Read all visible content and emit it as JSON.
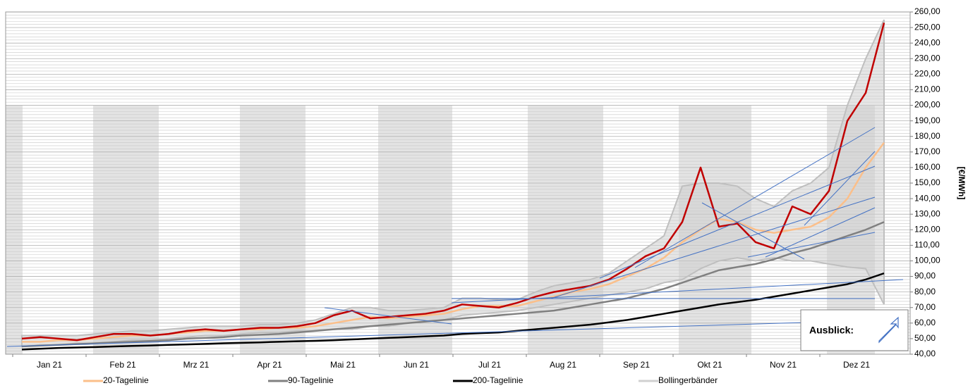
{
  "chart_data": {
    "type": "line",
    "y_axis_label": "[€/MWh]",
    "annotation": "Ausblick:",
    "categories": [
      null,
      "Jan 21",
      null,
      null,
      null,
      "Feb 21",
      null,
      null,
      null,
      "Mrz 21",
      null,
      null,
      null,
      "Apr 21",
      null,
      null,
      null,
      "Mai 21",
      null,
      null,
      null,
      "Jun 21",
      null,
      null,
      null,
      "Jul 21",
      null,
      null,
      null,
      "Aug 21",
      null,
      null,
      null,
      "Sep 21",
      null,
      null,
      null,
      "Okt 21",
      null,
      null,
      null,
      "Nov 21",
      null,
      null,
      null,
      "Dez 21",
      null,
      null
    ],
    "series": [
      {
        "name": "Bollingerbänder",
        "color": "#d0d0d0",
        "band": true,
        "values": [
          52,
          52,
          52,
          52,
          53,
          54,
          55,
          55,
          56,
          57,
          58,
          58,
          58,
          59,
          59,
          60,
          62,
          66,
          70,
          70,
          68,
          68,
          69,
          70,
          76,
          76,
          75,
          75,
          80,
          84,
          86,
          88,
          92,
          100,
          108,
          116,
          148,
          150,
          150,
          148,
          140,
          135,
          145,
          150,
          160,
          200,
          230,
          255
        ],
        "lower": [
          45,
          46,
          46,
          47,
          47,
          48,
          49,
          49,
          50,
          51,
          52,
          52,
          53,
          54,
          54,
          55,
          55,
          56,
          56,
          58,
          58,
          60,
          61,
          62,
          65,
          66,
          67,
          68,
          70,
          72,
          74,
          76,
          78,
          80,
          82,
          86,
          88,
          95,
          100,
          102,
          100,
          102,
          100,
          100,
          98,
          96,
          95,
          72
        ]
      },
      {
        "name": "200-Tagelinie",
        "color": "#000000",
        "values": [
          43,
          43.5,
          44,
          44.3,
          44.6,
          45,
          45.3,
          45.6,
          46,
          46.3,
          46.6,
          47,
          47.3,
          47.6,
          48,
          48.3,
          48.6,
          49,
          49.5,
          50,
          50.5,
          51,
          51.5,
          52,
          53,
          53.5,
          54,
          55,
          56,
          57,
          58,
          59,
          60.5,
          62,
          64,
          66,
          68,
          70,
          72,
          73.5,
          75,
          77,
          79,
          81,
          83,
          85,
          88,
          92
        ]
      },
      {
        "name": "90-Tagelinie",
        "color": "#808080",
        "values": [
          45,
          45.5,
          46,
          46.5,
          47,
          47.5,
          48,
          48.5,
          49,
          50,
          50.5,
          51,
          52,
          52.5,
          53,
          54,
          55,
          56,
          57,
          58,
          59,
          60,
          61,
          62,
          63,
          64,
          65,
          66,
          67,
          68,
          70,
          72,
          74,
          76,
          79,
          82,
          86,
          90,
          94,
          96,
          98,
          101,
          105,
          108,
          112,
          116,
          120,
          125
        ]
      },
      {
        "name": "20-Tagelinie",
        "color": "#fbbf8a",
        "values": [
          48,
          48,
          49,
          49,
          50,
          51,
          52,
          52,
          53,
          54,
          55,
          55,
          56,
          56,
          57,
          57,
          58,
          60,
          62,
          64,
          63,
          64,
          65,
          66,
          69,
          71,
          71,
          71,
          74,
          77,
          80,
          82,
          85,
          90,
          95,
          102,
          112,
          120,
          127,
          125,
          120,
          118,
          120,
          122,
          128,
          140,
          160,
          176
        ]
      },
      {
        "name": null,
        "color": "#c00000",
        "values": [
          50,
          51,
          50,
          49,
          51,
          53,
          53,
          52,
          53,
          55,
          56,
          55,
          56,
          57,
          57,
          58,
          60,
          65,
          68,
          63,
          64,
          65,
          66,
          68,
          72,
          71,
          70,
          73,
          77,
          80,
          82,
          84,
          88,
          95,
          103,
          108,
          125,
          160,
          122,
          124,
          112,
          108,
          135,
          130,
          145,
          190,
          208,
          253
        ]
      }
    ],
    "legend_order": [
      3,
      2,
      1,
      0
    ],
    "ylim": [
      40,
      260
    ],
    "yticks": [
      {
        "value": 40,
        "label": "40,00"
      },
      {
        "value": 50,
        "label": "50,00"
      },
      {
        "value": 60,
        "label": "60,00"
      },
      {
        "value": 70,
        "label": "70,00"
      },
      {
        "value": 80,
        "label": "80,00"
      },
      {
        "value": 90,
        "label": "90,00"
      },
      {
        "value": 100,
        "label": "100,00"
      },
      {
        "value": 110,
        "label": "110,00"
      },
      {
        "value": 120,
        "label": "120,00"
      },
      {
        "value": 130,
        "label": "130,00"
      },
      {
        "value": 140,
        "label": "140,00"
      },
      {
        "value": 150,
        "label": "150,00"
      },
      {
        "value": 160,
        "label": "160,00"
      },
      {
        "value": 170,
        "label": "170,00"
      },
      {
        "value": 180,
        "label": "180,00"
      },
      {
        "value": 190,
        "label": "190,00"
      },
      {
        "value": 200,
        "label": "200,00"
      },
      {
        "value": 210,
        "label": "210,00"
      },
      {
        "value": 220,
        "label": "220,00"
      },
      {
        "value": 230,
        "label": "230,00"
      },
      {
        "value": 240,
        "label": "240,00"
      },
      {
        "value": 250,
        "label": "250,00"
      },
      {
        "value": 260,
        "label": "260,00"
      }
    ],
    "grid": true
  }
}
